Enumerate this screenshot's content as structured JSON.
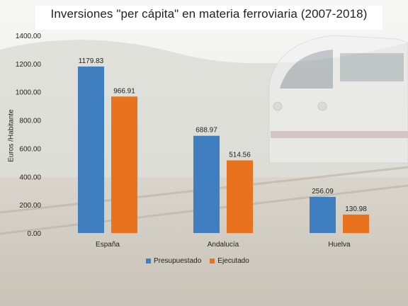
{
  "chart_data": {
    "type": "bar",
    "title": "Inversiones \"per cápita\" en materia ferroviaria (2007-2018)",
    "ylabel": "Euros /Habitante",
    "xlabel": "",
    "categories": [
      "España",
      "Andalucía",
      "Huelva"
    ],
    "series": [
      {
        "name": "Presupuestado",
        "values": [
          1179.83,
          688.97,
          256.09
        ],
        "data_labels": [
          "1179.83",
          "688.97",
          "256.09"
        ]
      },
      {
        "name": "Ejecutado",
        "values": [
          966.91,
          514.56,
          130.98
        ],
        "data_labels": [
          "966.91",
          "514.56",
          "130.98"
        ]
      }
    ],
    "ylim": [
      0,
      1400
    ],
    "yticks": [
      "0.00",
      "200.00",
      "400.00",
      "600.00",
      "800.00",
      "1000.00",
      "1200.00",
      "1400.00"
    ],
    "grid": false,
    "legend_position": "bottom",
    "colors": {
      "Presupuestado": "#3f7fc0",
      "Ejecutado": "#e8721e"
    }
  }
}
